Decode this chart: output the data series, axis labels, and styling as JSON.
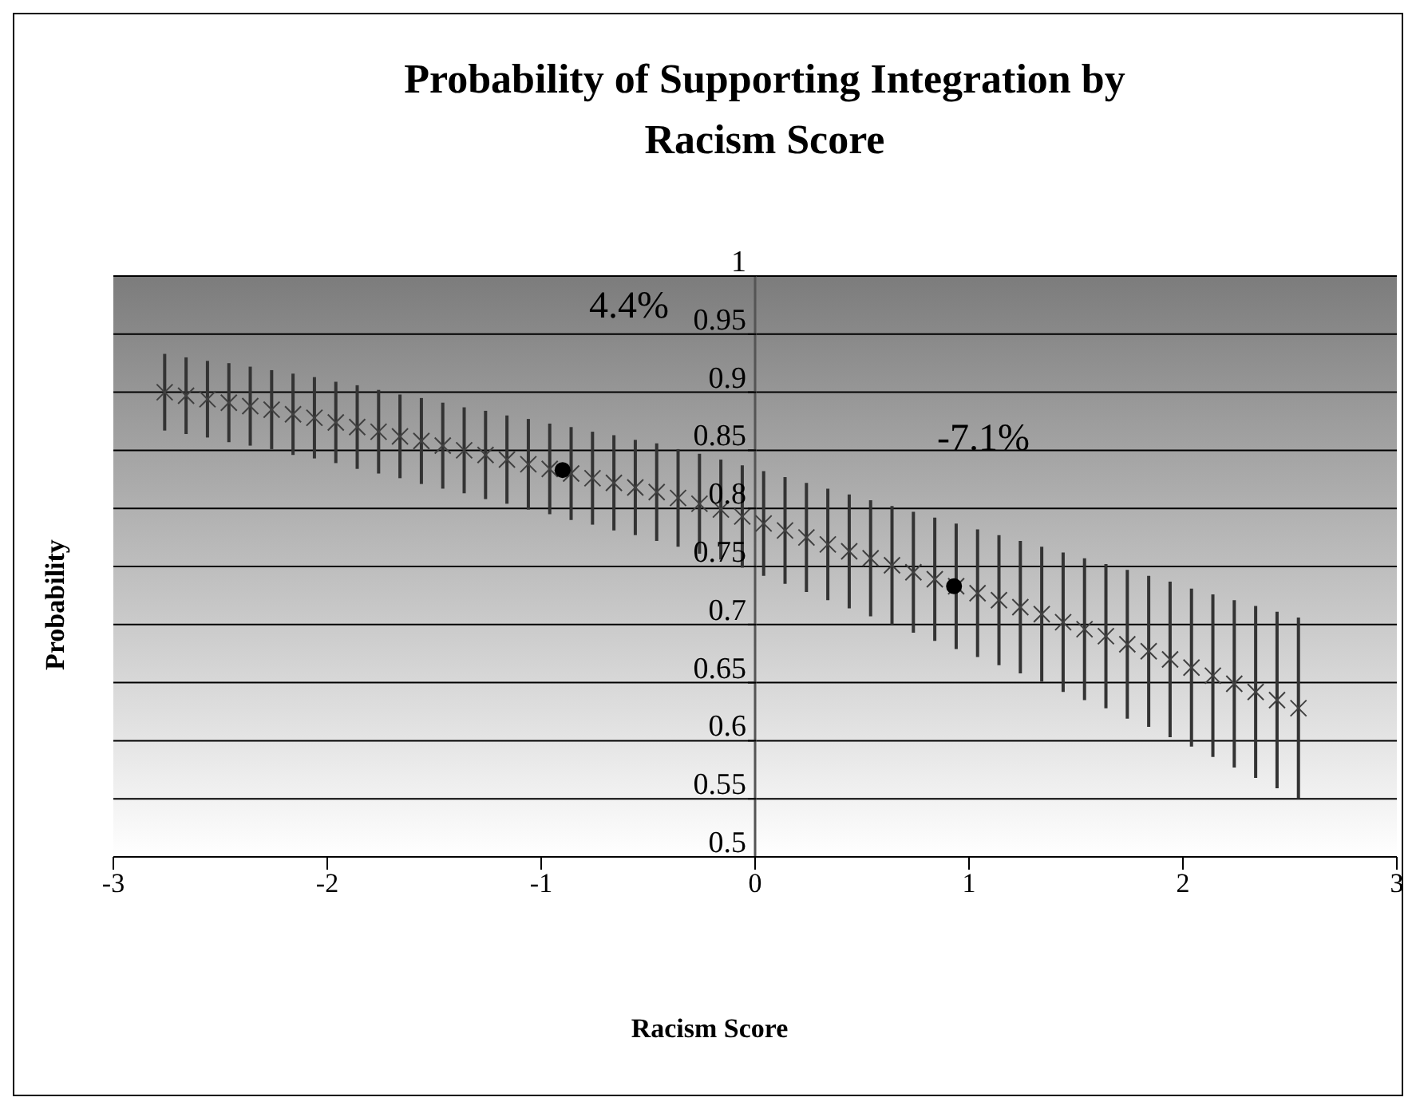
{
  "chart_data": {
    "type": "scatter",
    "title": "Probability of Supporting Integration by Racism Score",
    "xlabel": "Racism Score",
    "ylabel": "Probability",
    "annotations": [
      "4.4%",
      "-7.1%"
    ],
    "series": [
      {
        "color": "#404040",
        "marker": "cross",
        "x": [
          -2.76,
          -2.66,
          -2.56,
          -2.46,
          -2.36,
          -2.26,
          -2.16,
          -2.06,
          -1.96,
          -1.86,
          -1.76,
          -1.66,
          -1.56,
          -1.46,
          -1.36,
          -1.26,
          -1.16,
          -1.06,
          -0.96,
          -0.86,
          -0.76,
          -0.66,
          -0.56,
          -0.46,
          -0.36,
          -0.26,
          -0.16,
          -0.06,
          0.04,
          0.14,
          0.24,
          0.34,
          0.44,
          0.54,
          0.64,
          0.74,
          0.84,
          0.94,
          1.04,
          1.14,
          1.24,
          1.34,
          1.44,
          1.54,
          1.64,
          1.74,
          1.84,
          1.94,
          2.04,
          2.14,
          2.24,
          2.34,
          2.44,
          2.54
        ],
        "values": [
          0.9,
          0.897,
          0.894,
          0.891,
          0.888,
          0.885,
          0.881,
          0.878,
          0.874,
          0.87,
          0.866,
          0.862,
          0.858,
          0.854,
          0.85,
          0.846,
          0.842,
          0.838,
          0.834,
          0.83,
          0.826,
          0.822,
          0.818,
          0.814,
          0.809,
          0.804,
          0.799,
          0.793,
          0.787,
          0.781,
          0.775,
          0.769,
          0.763,
          0.757,
          0.751,
          0.745,
          0.739,
          0.733,
          0.727,
          0.721,
          0.715,
          0.709,
          0.702,
          0.696,
          0.69,
          0.683,
          0.677,
          0.67,
          0.663,
          0.656,
          0.649,
          0.642,
          0.635,
          0.628
        ],
        "errors": [
          0.033,
          0.033,
          0.033,
          0.034,
          0.034,
          0.034,
          0.035,
          0.035,
          0.035,
          0.036,
          0.036,
          0.036,
          0.037,
          0.037,
          0.037,
          0.038,
          0.038,
          0.039,
          0.039,
          0.04,
          0.04,
          0.041,
          0.041,
          0.042,
          0.042,
          0.043,
          0.043,
          0.044,
          0.045,
          0.046,
          0.047,
          0.048,
          0.049,
          0.05,
          0.051,
          0.052,
          0.053,
          0.054,
          0.055,
          0.056,
          0.057,
          0.058,
          0.06,
          0.061,
          0.062,
          0.064,
          0.065,
          0.067,
          0.068,
          0.07,
          0.072,
          0.074,
          0.076,
          0.078
        ]
      },
      {
        "color": "#000000",
        "marker": "circle",
        "x": [
          -0.9,
          0.93
        ],
        "values": [
          0.833,
          0.733
        ]
      }
    ],
    "xlim": [
      -3,
      3
    ],
    "xticks": [
      -3,
      -2,
      -1,
      0,
      1,
      2,
      3
    ],
    "ylim": [
      0.5,
      1
    ],
    "yticks": [
      0.5,
      0.55,
      0.6,
      0.65,
      0.7,
      0.75,
      0.8,
      0.85,
      0.9,
      0.95,
      1
    ],
    "grid": "y"
  }
}
